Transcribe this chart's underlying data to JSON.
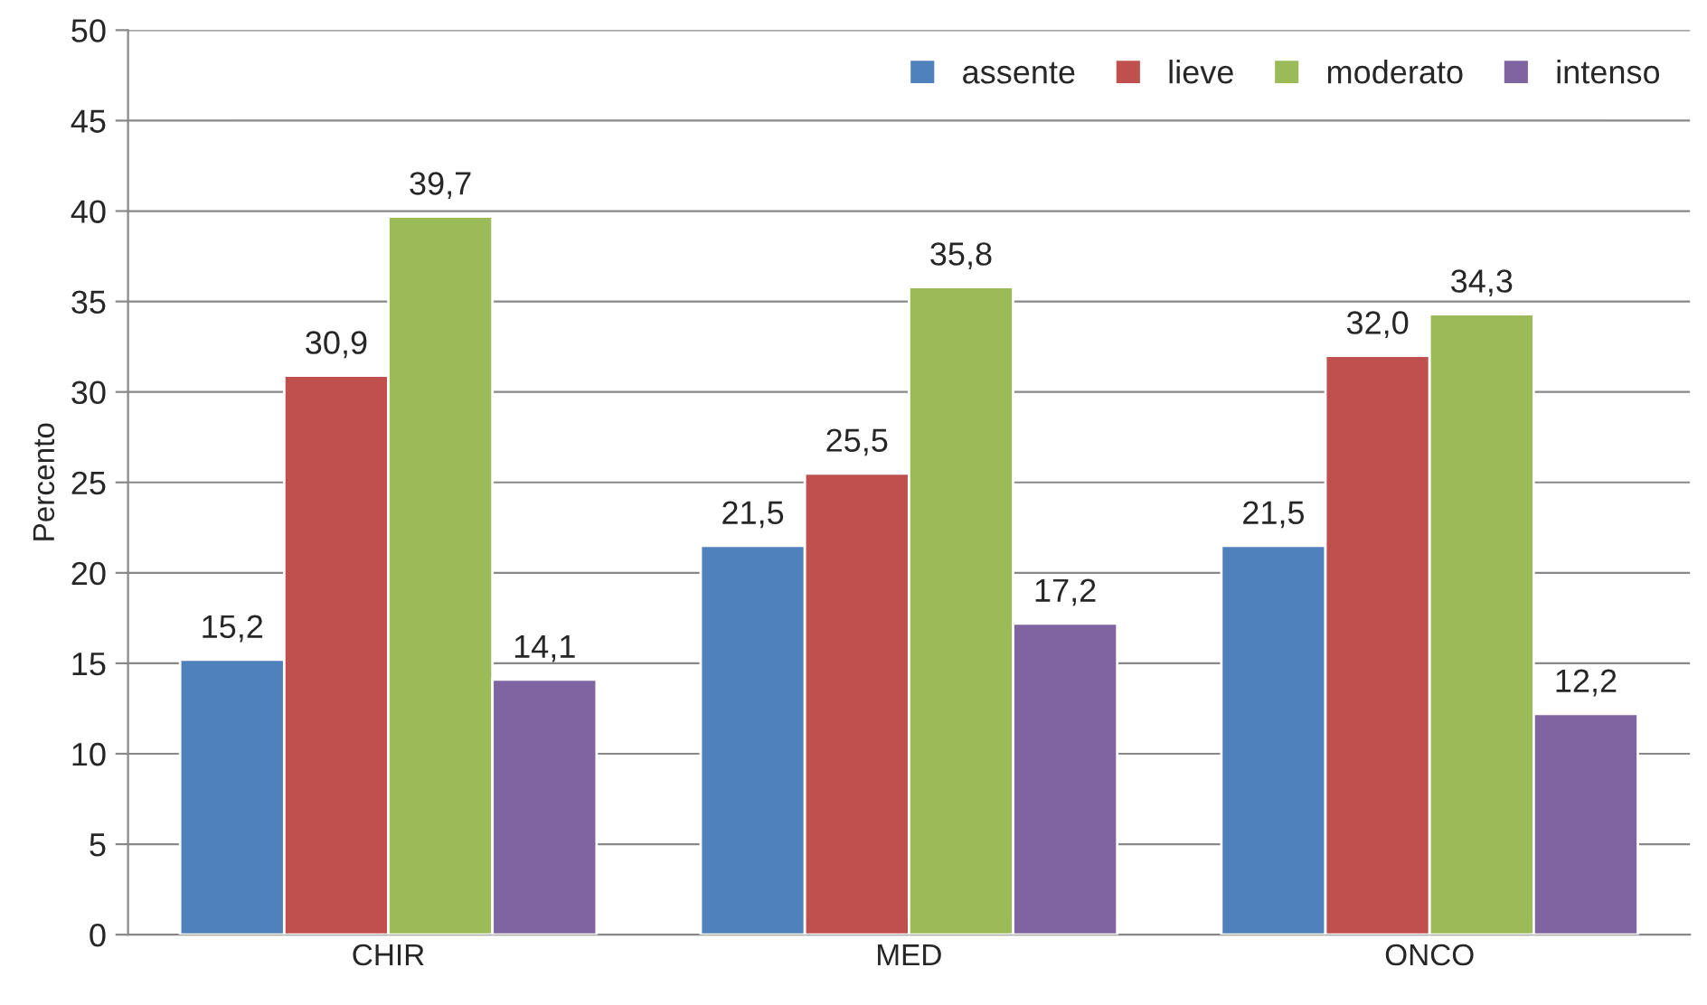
{
  "chart_data": {
    "type": "bar",
    "ylabel": "Percento",
    "categories": [
      "CHIR",
      "MED",
      "ONCO"
    ],
    "series": [
      {
        "name": "assente",
        "color": "#4f81bd",
        "values": [
          15.2,
          21.5,
          21.5
        ],
        "value_labels": [
          "15,2",
          "21,5",
          "21,5"
        ]
      },
      {
        "name": "lieve",
        "color": "#c0504d",
        "values": [
          30.9,
          25.5,
          32.0
        ],
        "value_labels": [
          "30,9",
          "25,5",
          "32,0"
        ]
      },
      {
        "name": "moderato",
        "color": "#9bbb59",
        "values": [
          39.7,
          35.8,
          34.3
        ],
        "value_labels": [
          "39,7",
          "35,8",
          "34,3"
        ]
      },
      {
        "name": "intenso",
        "color": "#8064a2",
        "values": [
          14.1,
          17.2,
          12.2
        ],
        "value_labels": [
          "14,1",
          "17,2",
          "12,2"
        ]
      }
    ],
    "ylim": [
      0,
      50
    ],
    "yticks": [
      0,
      5,
      10,
      15,
      20,
      25,
      30,
      35,
      40,
      45,
      50
    ],
    "grid": "y",
    "legend": "top right"
  }
}
